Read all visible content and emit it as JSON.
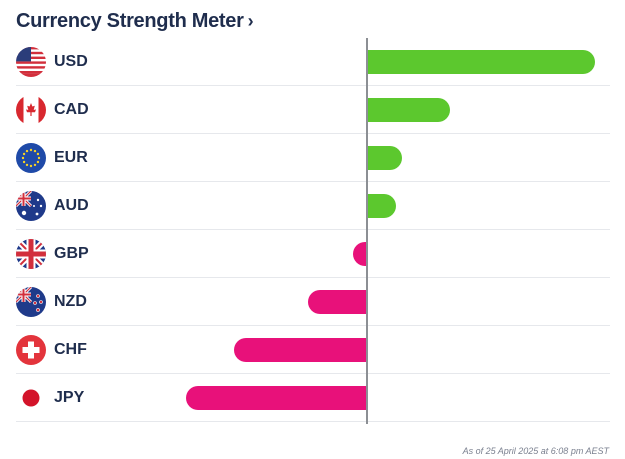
{
  "header": {
    "title": "Currency Strength Meter",
    "chevron": "›"
  },
  "colors": {
    "positive": "#5cc82e",
    "negative": "#e8117a",
    "axis": "#8c8f94",
    "text": "#1f2d4d"
  },
  "currencies": [
    {
      "code": "USD",
      "flag": "us-flag-icon",
      "strength": 0.9
    },
    {
      "code": "CAD",
      "flag": "canada-flag-icon",
      "strength": 0.33
    },
    {
      "code": "EUR",
      "flag": "eu-flag-icon",
      "strength": 0.14
    },
    {
      "code": "AUD",
      "flag": "australia-flag-icon",
      "strength": 0.12
    },
    {
      "code": "GBP",
      "flag": "uk-flag-icon",
      "strength": -0.05
    },
    {
      "code": "NZD",
      "flag": "new-zealand-flag-icon",
      "strength": -0.23
    },
    {
      "code": "CHF",
      "flag": "switzerland-flag-icon",
      "strength": -0.52
    },
    {
      "code": "JPY",
      "flag": "japan-flag-icon",
      "strength": -0.71
    }
  ],
  "footer": {
    "timestamp": "As of 25 April 2025 at 6:08 pm AEST"
  }
}
